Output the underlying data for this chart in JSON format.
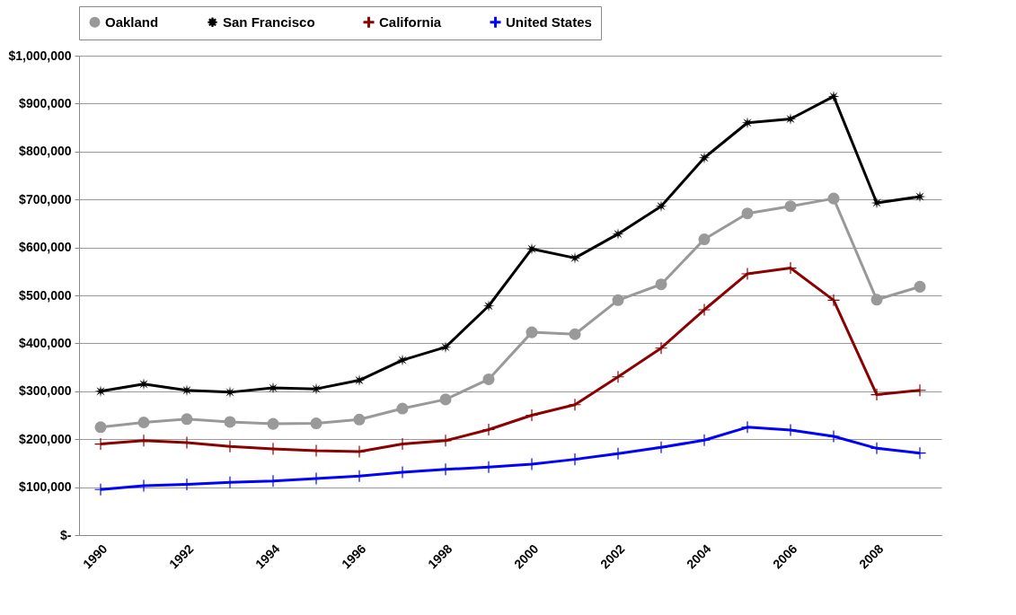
{
  "chart_data": {
    "type": "line",
    "categories": [
      "1990",
      null,
      "1992",
      null,
      "1994",
      null,
      "1996",
      null,
      "1998",
      null,
      "2000",
      null,
      "2002",
      null,
      "2004",
      null,
      "2006",
      null,
      "2008",
      null
    ],
    "series": [
      {
        "name": "Oakland",
        "color": "#999999",
        "marker": "circle",
        "values": [
          225000,
          235000,
          242000,
          236000,
          232000,
          233000,
          241000,
          264000,
          283000,
          325000,
          423000,
          419000,
          490000,
          523000,
          617000,
          671000,
          686000,
          702000,
          491000,
          518000
        ]
      },
      {
        "name": "San Francisco",
        "color": "#000000",
        "marker": "star",
        "values": [
          300000,
          315000,
          302000,
          298000,
          307000,
          305000,
          323000,
          365000,
          392000,
          478000,
          597000,
          578000,
          628000,
          686000,
          787000,
          860000,
          868000,
          915000,
          693000,
          706000
        ]
      },
      {
        "name": "California",
        "color": "#8b0000",
        "marker": "cross",
        "values": [
          190000,
          197000,
          193000,
          185000,
          180000,
          176000,
          174000,
          190000,
          197000,
          220000,
          250000,
          272000,
          330000,
          390000,
          470000,
          545000,
          557000,
          490000,
          293000,
          302000
        ]
      },
      {
        "name": "United States",
        "color": "#0000ff",
        "marker": "cross",
        "values": [
          95000,
          103000,
          106000,
          110000,
          113000,
          118000,
          123000,
          131000,
          137000,
          142000,
          148000,
          158000,
          170000,
          183000,
          198000,
          225000,
          219000,
          206000,
          181000,
          171000
        ]
      }
    ],
    "ylim": [
      0,
      1000000
    ],
    "yticks": [
      {
        "value": 0,
        "label": "$-"
      },
      {
        "value": 100000,
        "label": "$100,000"
      },
      {
        "value": 200000,
        "label": "$200,000"
      },
      {
        "value": 300000,
        "label": "$300,000"
      },
      {
        "value": 400000,
        "label": "$400,000"
      },
      {
        "value": 500000,
        "label": "$500,000"
      },
      {
        "value": 600000,
        "label": "$600,000"
      },
      {
        "value": 700000,
        "label": "$700,000"
      },
      {
        "value": 800000,
        "label": "$800,000"
      },
      {
        "value": 900000,
        "label": "$900,000"
      },
      {
        "value": 1000000,
        "label": "$1,000,000"
      }
    ],
    "grid": "y",
    "legend": "top",
    "line_style": "solid"
  }
}
